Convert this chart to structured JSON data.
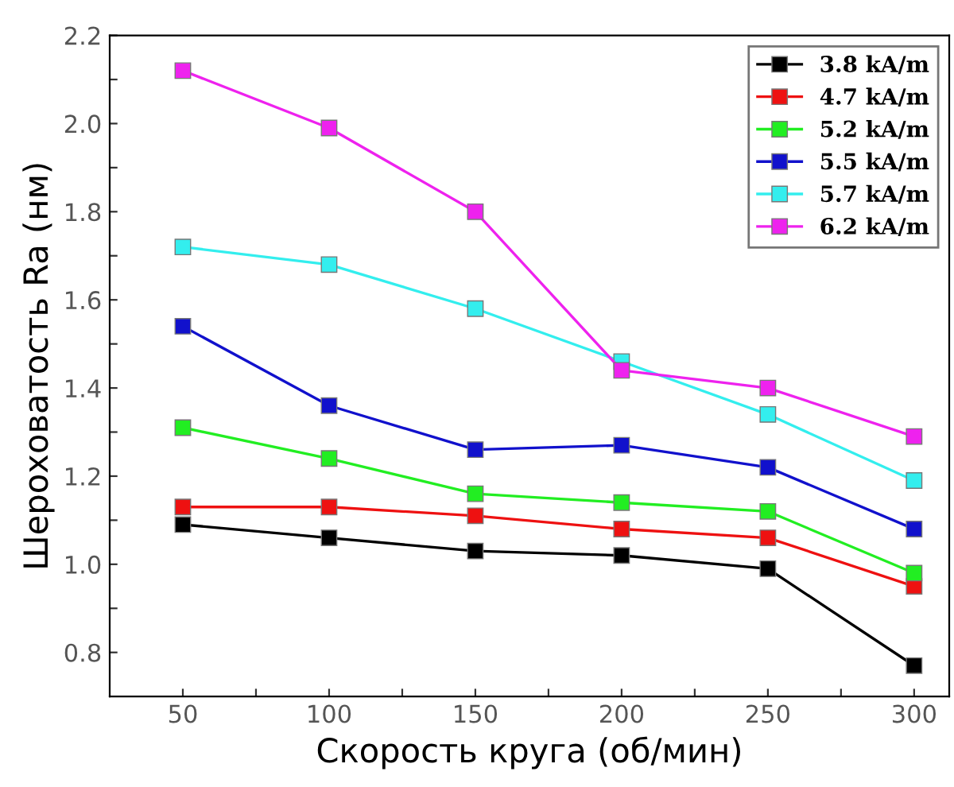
{
  "chart_data": {
    "type": "line",
    "xlabel": "Скорость круга (об/мин)",
    "ylabel": "Шероховатость Ra (нм)",
    "x": [
      50,
      100,
      150,
      200,
      250,
      300
    ],
    "xlim": [
      25,
      312
    ],
    "ylim": [
      0.7,
      2.2
    ],
    "xticks": [
      50,
      {
        "value": 75,
        "label": null
      },
      100,
      {
        "value": 125,
        "label": null
      },
      150,
      {
        "value": 175,
        "label": null
      },
      200,
      {
        "value": 225,
        "label": null
      },
      250,
      {
        "value": 275,
        "label": null
      },
      300
    ],
    "yticks": [
      {
        "value": 0.8,
        "label": "0.8"
      },
      {
        "value": 0.9,
        "label": null
      },
      {
        "value": 1.0,
        "label": "1.0"
      },
      {
        "value": 1.1,
        "label": null
      },
      {
        "value": 1.2,
        "label": "1.2"
      },
      {
        "value": 1.3,
        "label": null
      },
      {
        "value": 1.4,
        "label": "1.4"
      },
      {
        "value": 1.5,
        "label": null
      },
      {
        "value": 1.6,
        "label": "1.6"
      },
      {
        "value": 1.7,
        "label": null
      },
      {
        "value": 1.8,
        "label": "1.8"
      },
      {
        "value": 1.9,
        "label": null
      },
      {
        "value": 2.0,
        "label": "2.0"
      },
      {
        "value": 2.1,
        "label": null
      },
      {
        "value": 2.2,
        "label": "2.2"
      }
    ],
    "grid": false,
    "legend": "top right",
    "marker": "square",
    "line_style": "solid",
    "series": [
      {
        "name": "3.8 kA/m",
        "color": "#000000",
        "values": [
          1.09,
          1.06,
          1.03,
          1.02,
          0.99,
          0.77
        ]
      },
      {
        "name": "4.7 kA/m",
        "color": "#ee1111",
        "values": [
          1.13,
          1.13,
          1.11,
          1.08,
          1.06,
          0.95
        ]
      },
      {
        "name": "5.2 kA/m",
        "color": "#22ee22",
        "values": [
          1.31,
          1.24,
          1.16,
          1.14,
          1.12,
          0.98
        ]
      },
      {
        "name": "5.5 kA/m",
        "color": "#1111cc",
        "values": [
          1.54,
          1.36,
          1.26,
          1.27,
          1.22,
          1.08
        ]
      },
      {
        "name": "5.7 kA/m",
        "color": "#33eeee",
        "values": [
          1.72,
          1.68,
          1.58,
          1.46,
          1.34,
          1.19
        ]
      },
      {
        "name": "6.2 kA/m",
        "color": "#ee22ee",
        "values": [
          2.12,
          1.99,
          1.8,
          1.44,
          1.4,
          1.29
        ]
      }
    ]
  }
}
